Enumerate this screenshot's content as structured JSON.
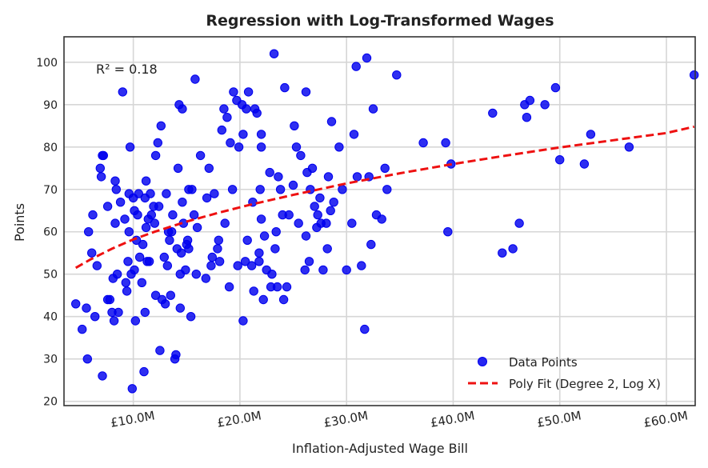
{
  "chart_data": {
    "type": "scatter",
    "title": "Regression with Log-Transformed Wages",
    "xlabel": "Inflation-Adjusted Wage Bill",
    "ylabel": "Points",
    "xlim": [
      3.5,
      62.7
    ],
    "ylim": [
      19,
      106
    ],
    "x_ticks": [
      10,
      20,
      30,
      40,
      50,
      60
    ],
    "x_tick_labels": [
      "£10.0M",
      "£20.0M",
      "£30.0M",
      "£40.0M",
      "£50.0M",
      "£60.0M"
    ],
    "y_ticks": [
      20,
      30,
      40,
      50,
      60,
      70,
      80,
      90,
      100
    ],
    "y_tick_labels": [
      "20",
      "30",
      "40",
      "50",
      "60",
      "70",
      "80",
      "90",
      "100"
    ],
    "grid": true,
    "legend_position": "bottom-right",
    "annotation": "R² = 0.18",
    "colors": {
      "points": "#0000ee",
      "fit": "#ee1111"
    },
    "series": [
      {
        "name": "Data Points",
        "type": "scatter",
        "points": [
          [
            4.6,
            43
          ],
          [
            5.2,
            37
          ],
          [
            5.6,
            42
          ],
          [
            5.7,
            30
          ],
          [
            5.8,
            60
          ],
          [
            6.1,
            55
          ],
          [
            6.2,
            64
          ],
          [
            6.4,
            40
          ],
          [
            6.6,
            52
          ],
          [
            6.9,
            75
          ],
          [
            7.0,
            73
          ],
          [
            7.1,
            78
          ],
          [
            7.2,
            78
          ],
          [
            7.1,
            26
          ],
          [
            7.6,
            44
          ],
          [
            7.6,
            66
          ],
          [
            7.8,
            44
          ],
          [
            8.0,
            41
          ],
          [
            8.1,
            49
          ],
          [
            8.2,
            39
          ],
          [
            8.3,
            62
          ],
          [
            8.3,
            72
          ],
          [
            8.4,
            70
          ],
          [
            8.5,
            50
          ],
          [
            8.6,
            41
          ],
          [
            8.8,
            67
          ],
          [
            9.0,
            93
          ],
          [
            9.2,
            63
          ],
          [
            9.3,
            48
          ],
          [
            9.4,
            46
          ],
          [
            9.5,
            53
          ],
          [
            9.6,
            69
          ],
          [
            9.6,
            60
          ],
          [
            9.7,
            80
          ],
          [
            9.8,
            50
          ],
          [
            9.9,
            23
          ],
          [
            10.0,
            68
          ],
          [
            10.1,
            51
          ],
          [
            10.1,
            65
          ],
          [
            10.2,
            39
          ],
          [
            10.3,
            58
          ],
          [
            10.4,
            64
          ],
          [
            10.5,
            69
          ],
          [
            10.6,
            54
          ],
          [
            10.8,
            48
          ],
          [
            10.9,
            57
          ],
          [
            11.0,
            27
          ],
          [
            11.1,
            41
          ],
          [
            11.1,
            68
          ],
          [
            11.2,
            61
          ],
          [
            11.2,
            72
          ],
          [
            11.3,
            53
          ],
          [
            11.4,
            63
          ],
          [
            11.5,
            53
          ],
          [
            11.6,
            69
          ],
          [
            11.7,
            64
          ],
          [
            11.9,
            66
          ],
          [
            12.0,
            62
          ],
          [
            12.1,
            78
          ],
          [
            12.1,
            45
          ],
          [
            12.3,
            81
          ],
          [
            12.4,
            66
          ],
          [
            12.5,
            32
          ],
          [
            12.6,
            85
          ],
          [
            12.7,
            44
          ],
          [
            12.9,
            54
          ],
          [
            13.0,
            43
          ],
          [
            13.1,
            69
          ],
          [
            13.2,
            52
          ],
          [
            13.3,
            60
          ],
          [
            13.4,
            58
          ],
          [
            13.5,
            45
          ],
          [
            13.6,
            60
          ],
          [
            13.7,
            64
          ],
          [
            13.9,
            30
          ],
          [
            14.0,
            31
          ],
          [
            14.1,
            56
          ],
          [
            14.2,
            75
          ],
          [
            14.3,
            90
          ],
          [
            14.4,
            50
          ],
          [
            14.4,
            42
          ],
          [
            14.5,
            55
          ],
          [
            14.6,
            89
          ],
          [
            14.6,
            67
          ],
          [
            14.7,
            62
          ],
          [
            14.9,
            51
          ],
          [
            15.0,
            57
          ],
          [
            15.1,
            58
          ],
          [
            15.2,
            56
          ],
          [
            15.2,
            70
          ],
          [
            15.4,
            40
          ],
          [
            15.5,
            70
          ],
          [
            15.7,
            64
          ],
          [
            15.8,
            96
          ],
          [
            15.9,
            50
          ],
          [
            16.0,
            61
          ],
          [
            16.3,
            78
          ],
          [
            16.8,
            49
          ],
          [
            16.9,
            68
          ],
          [
            17.1,
            75
          ],
          [
            17.3,
            52
          ],
          [
            17.4,
            54
          ],
          [
            17.6,
            69
          ],
          [
            17.9,
            56
          ],
          [
            18.0,
            58
          ],
          [
            18.1,
            53
          ],
          [
            18.3,
            84
          ],
          [
            18.5,
            89
          ],
          [
            18.6,
            62
          ],
          [
            18.8,
            87
          ],
          [
            19.0,
            47
          ],
          [
            19.1,
            81
          ],
          [
            19.3,
            70
          ],
          [
            19.4,
            93
          ],
          [
            19.7,
            91
          ],
          [
            19.8,
            52
          ],
          [
            19.9,
            80
          ],
          [
            20.2,
            90
          ],
          [
            20.3,
            83
          ],
          [
            20.3,
            39
          ],
          [
            20.5,
            53
          ],
          [
            20.6,
            89
          ],
          [
            20.7,
            58
          ],
          [
            20.8,
            93
          ],
          [
            21.1,
            52
          ],
          [
            21.2,
            67
          ],
          [
            21.3,
            46
          ],
          [
            21.4,
            89
          ],
          [
            21.6,
            88
          ],
          [
            21.8,
            53
          ],
          [
            21.8,
            55
          ],
          [
            21.9,
            70
          ],
          [
            22.0,
            80
          ],
          [
            22.0,
            83
          ],
          [
            22.0,
            63
          ],
          [
            22.2,
            44
          ],
          [
            22.3,
            59
          ],
          [
            22.5,
            51
          ],
          [
            22.8,
            74
          ],
          [
            22.9,
            47
          ],
          [
            23.0,
            50
          ],
          [
            23.2,
            102
          ],
          [
            23.3,
            56
          ],
          [
            23.4,
            60
          ],
          [
            23.5,
            47
          ],
          [
            23.6,
            73
          ],
          [
            23.8,
            70
          ],
          [
            24.0,
            64
          ],
          [
            24.1,
            44
          ],
          [
            24.2,
            94
          ],
          [
            24.4,
            47
          ],
          [
            24.6,
            64
          ],
          [
            25.0,
            71
          ],
          [
            25.1,
            85
          ],
          [
            25.3,
            80
          ],
          [
            25.5,
            62
          ],
          [
            25.7,
            78
          ],
          [
            26.1,
            51
          ],
          [
            26.2,
            93
          ],
          [
            26.2,
            59
          ],
          [
            26.3,
            74
          ],
          [
            26.5,
            53
          ],
          [
            26.6,
            70
          ],
          [
            26.8,
            75
          ],
          [
            27.0,
            66
          ],
          [
            27.2,
            61
          ],
          [
            27.3,
            64
          ],
          [
            27.5,
            68
          ],
          [
            27.6,
            62
          ],
          [
            27.8,
            51
          ],
          [
            28.1,
            62
          ],
          [
            28.2,
            56
          ],
          [
            28.3,
            73
          ],
          [
            28.5,
            65
          ],
          [
            28.6,
            86
          ],
          [
            28.8,
            67
          ],
          [
            29.3,
            80
          ],
          [
            29.6,
            70
          ],
          [
            30.0,
            51
          ],
          [
            30.5,
            62
          ],
          [
            30.7,
            83
          ],
          [
            30.9,
            99
          ],
          [
            31.0,
            73
          ],
          [
            31.4,
            52
          ],
          [
            31.7,
            37
          ],
          [
            31.9,
            101
          ],
          [
            32.1,
            73
          ],
          [
            32.3,
            57
          ],
          [
            32.5,
            89
          ],
          [
            32.8,
            64
          ],
          [
            33.3,
            63
          ],
          [
            33.6,
            75
          ],
          [
            33.8,
            70
          ],
          [
            34.7,
            97
          ],
          [
            37.2,
            81
          ],
          [
            39.3,
            81
          ],
          [
            39.5,
            60
          ],
          [
            39.8,
            76
          ],
          [
            43.7,
            88
          ],
          [
            44.6,
            55
          ],
          [
            45.6,
            56
          ],
          [
            46.2,
            62
          ],
          [
            46.7,
            90
          ],
          [
            46.9,
            87
          ],
          [
            47.2,
            91
          ],
          [
            48.6,
            90
          ],
          [
            49.6,
            94
          ],
          [
            50.0,
            77
          ],
          [
            52.3,
            76
          ],
          [
            52.9,
            83
          ],
          [
            56.5,
            80
          ],
          [
            62.6,
            97
          ]
        ]
      },
      {
        "name": "Poly Fit (Degree 2, Log X)",
        "type": "line",
        "dashed": true,
        "points": [
          [
            4.6,
            51.5
          ],
          [
            6,
            53.5
          ],
          [
            8,
            56.0
          ],
          [
            10,
            58.2
          ],
          [
            12,
            60.0
          ],
          [
            15,
            62.4
          ],
          [
            18,
            64.5
          ],
          [
            21,
            66.4
          ],
          [
            25,
            68.7
          ],
          [
            30,
            71.4
          ],
          [
            35,
            73.8
          ],
          [
            40,
            76.0
          ],
          [
            45,
            78.0
          ],
          [
            50,
            79.9
          ],
          [
            55,
            81.6
          ],
          [
            60,
            83.3
          ],
          [
            62.6,
            84.8
          ]
        ]
      }
    ]
  }
}
